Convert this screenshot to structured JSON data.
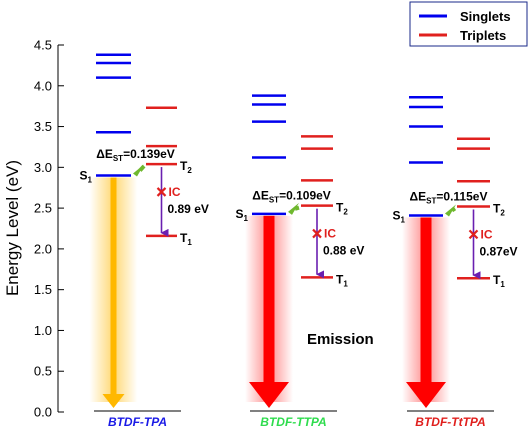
{
  "chart_data": {
    "type": "energy-level-diagram",
    "ylabel": "Energy Level (eV)",
    "ylim": [
      0.0,
      4.5
    ],
    "yticks": [
      "0.0",
      "0.5",
      "1.0",
      "1.5",
      "2.0",
      "2.5",
      "3.0",
      "3.5",
      "4.0",
      "4.5"
    ],
    "legend": {
      "position": "top-right",
      "items": [
        {
          "name": "Singlets",
          "color": "#0000ee"
        },
        {
          "name": "Triplets",
          "color": "#e0201e"
        }
      ]
    },
    "emission_label": "Emission",
    "molecules": [
      {
        "name": "BTDF-TPA",
        "name_color": "#1a1ae6",
        "emission_color": "#ffb800",
        "singlets": [
          4.38,
          4.28,
          4.1,
          3.43,
          2.9
        ],
        "triplets": [
          3.73,
          3.26,
          3.04,
          2.16
        ],
        "delta_est": "0.139eV",
        "ic_energy": "0.89 eV"
      },
      {
        "name": "BTDF-TTPA",
        "name_color": "#2fdc4e",
        "emission_color": "#ff0000",
        "singlets": [
          3.88,
          3.77,
          3.56,
          3.12,
          2.43
        ],
        "triplets": [
          3.38,
          3.23,
          2.84,
          2.53,
          1.65
        ],
        "delta_est": "0.109eV",
        "ic_energy": "0.88 eV"
      },
      {
        "name": "BTDF-TtTPA",
        "name_color": "#e0201e",
        "emission_color": "#ff0000",
        "singlets": [
          3.86,
          3.74,
          3.5,
          3.06,
          2.41
        ],
        "triplets": [
          3.35,
          3.23,
          2.83,
          2.52,
          1.64
        ],
        "delta_est": "0.115eV",
        "ic_energy": "0.87eV"
      }
    ],
    "state_labels": {
      "s1": "S",
      "t1": "T",
      "t2": "T",
      "sub1": "1",
      "sub2": "2",
      "ic": "IC",
      "delta": "ΔE",
      "st": "ST"
    }
  }
}
